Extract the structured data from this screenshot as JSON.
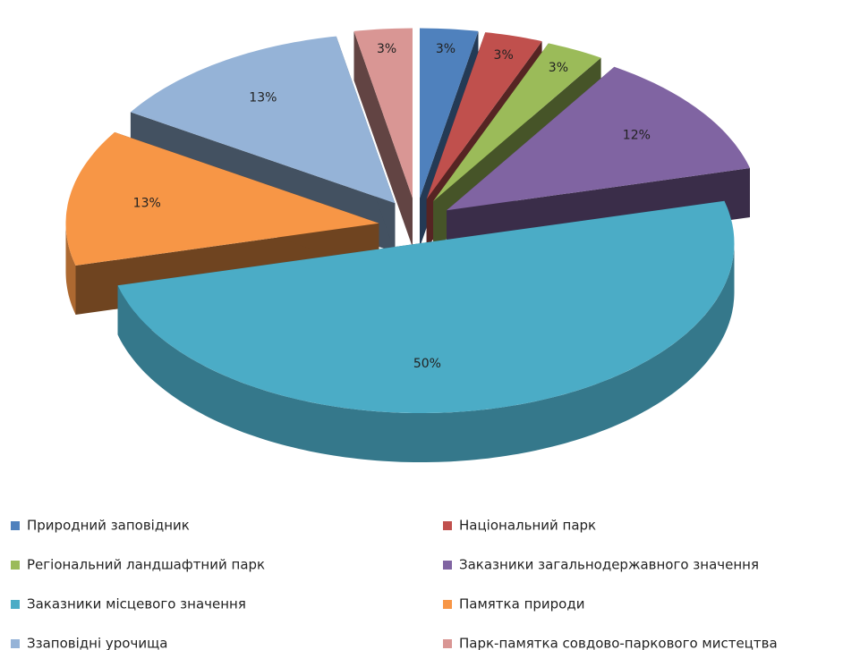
{
  "chart_data": {
    "type": "pie3d",
    "categories": [
      "Природний заповідник",
      "Національний парк",
      "Регіональний ландшафтний парк",
      "Заказники загальнодержавного значення",
      "Заказники місцевого значення",
      "Памятка природи",
      "Ззаповідні урочища",
      "Парк-памятка совдово-паркового мистецтва"
    ],
    "values": [
      3,
      3,
      3,
      12,
      50,
      13,
      13,
      3
    ],
    "value_labels": [
      "3%",
      "3%",
      "3%",
      "12%",
      "50%",
      "13%",
      "13%",
      "3%"
    ],
    "colors": [
      "#4f81bd",
      "#c0504d",
      "#9bbb59",
      "#8064a2",
      "#4bacc6",
      "#f79646",
      "#95b3d7",
      "#d99694"
    ],
    "legend": "bottom"
  }
}
